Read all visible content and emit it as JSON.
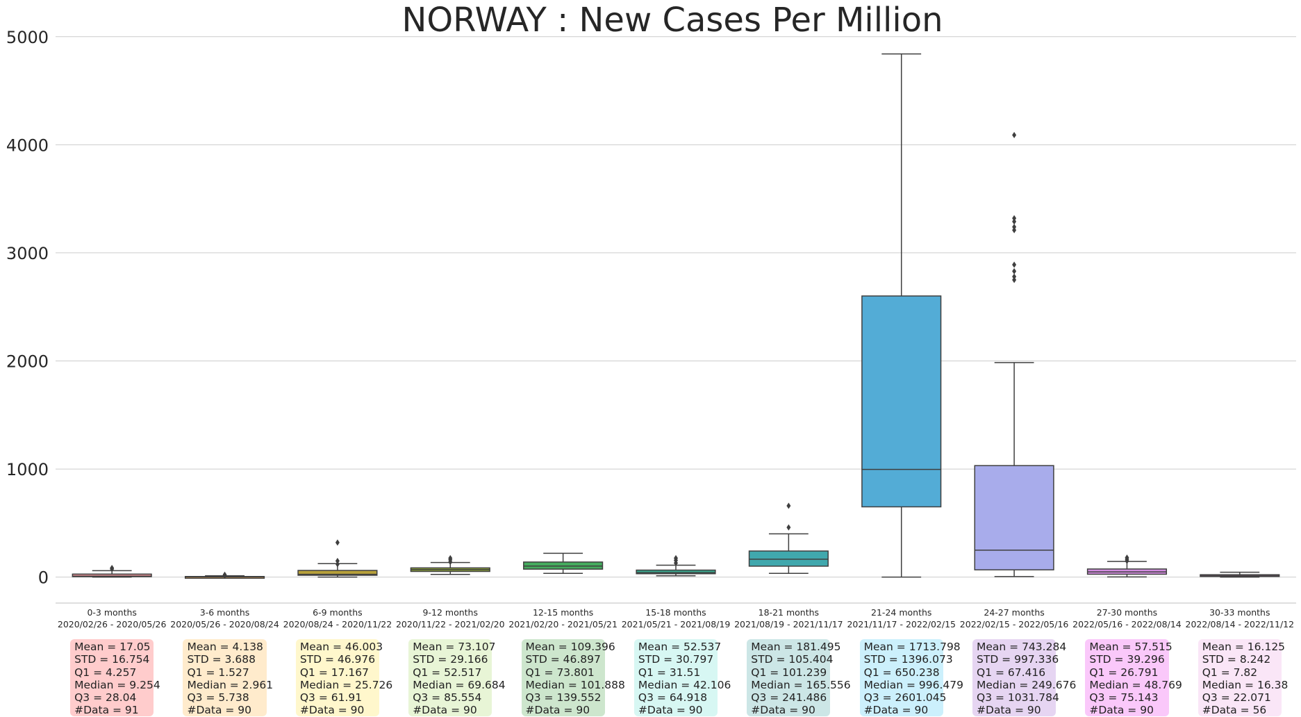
{
  "chart_data": {
    "type": "box",
    "title": "NORWAY : New Cases Per Million",
    "xlabel": "",
    "ylabel": "",
    "ylim": [
      -240,
      5050
    ],
    "yticks": [
      0,
      1000,
      2000,
      3000,
      4000,
      5000
    ],
    "grid": "horizontal",
    "categories": [
      {
        "label": "0-3 months",
        "dates": "2020/02/26 - 2020/05/26"
      },
      {
        "label": "3-6 months",
        "dates": "2020/05/26 - 2020/08/24"
      },
      {
        "label": "6-9 months",
        "dates": "2020/08/24 - 2020/11/22"
      },
      {
        "label": "9-12 months",
        "dates": "2020/11/22 - 2021/02/20"
      },
      {
        "label": "12-15 months",
        "dates": "2021/02/20 - 2021/05/21"
      },
      {
        "label": "15-18 months",
        "dates": "2021/05/21 - 2021/08/19"
      },
      {
        "label": "18-21 months",
        "dates": "2021/08/19 - 2021/11/17"
      },
      {
        "label": "21-24 months",
        "dates": "2021/11/17 - 2022/02/15"
      },
      {
        "label": "24-27 months",
        "dates": "2022/02/15 - 2022/05/16"
      },
      {
        "label": "27-30 months",
        "dates": "2022/05/16 - 2022/08/14"
      },
      {
        "label": "30-33 months",
        "dates": "2022/08/14 - 2022/11/12"
      }
    ],
    "boxes": [
      {
        "q1": 4.257,
        "median": 9.254,
        "q3": 28.04,
        "whisker_low": 0,
        "whisker_high": 60,
        "outliers": [
          75,
          85
        ],
        "color": "#e9949a"
      },
      {
        "q1": 1.527,
        "median": 2.961,
        "q3": 5.738,
        "whisker_low": 0,
        "whisker_high": 12,
        "outliers": [
          15,
          22
        ],
        "color": "#d89e56"
      },
      {
        "q1": 17.167,
        "median": 25.726,
        "q3": 61.91,
        "whisker_low": 0,
        "whisker_high": 125,
        "outliers": [
          120,
          150,
          320
        ],
        "color": "#b8a13a"
      },
      {
        "q1": 52.517,
        "median": 69.684,
        "q3": 85.554,
        "whisker_low": 25,
        "whisker_high": 135,
        "outliers": [
          140,
          160,
          175
        ],
        "color": "#8ca23a"
      },
      {
        "q1": 73.801,
        "median": 101.888,
        "q3": 139.552,
        "whisker_low": 35,
        "whisker_high": 220,
        "outliers": [],
        "color": "#45ab5e"
      },
      {
        "q1": 31.51,
        "median": 42.106,
        "q3": 64.918,
        "whisker_low": 12,
        "whisker_high": 110,
        "outliers": [
          130,
          155,
          175
        ],
        "color": "#3aa88f"
      },
      {
        "q1": 101.239,
        "median": 165.556,
        "q3": 241.486,
        "whisker_low": 35,
        "whisker_high": 400,
        "outliers": [
          460,
          660
        ],
        "color": "#40a8ad"
      },
      {
        "q1": 650.238,
        "median": 996.479,
        "q3": 2601.045,
        "whisker_low": 0,
        "whisker_high": 4840,
        "outliers": [],
        "color": "#53acd6"
      },
      {
        "q1": 67.416,
        "median": 249.676,
        "q3": 1031.784,
        "whisker_low": 5,
        "whisker_high": 1985,
        "outliers": [
          2750,
          2780,
          2830,
          2890,
          3210,
          3240,
          3290,
          3320,
          4090
        ],
        "color": "#a8aceb"
      },
      {
        "q1": 26.791,
        "median": 48.769,
        "q3": 75.143,
        "whisker_low": 2,
        "whisker_high": 145,
        "outliers": [
          150,
          165,
          180
        ],
        "color": "#d58ee2"
      },
      {
        "q1": 7.82,
        "median": 16.38,
        "q3": 22.071,
        "whisker_low": 0,
        "whisker_high": 45,
        "outliers": [],
        "color": "#e58ec5"
      }
    ],
    "stats": [
      {
        "bg": "#ffcccc",
        "lines": [
          "Mean = 17.05",
          "STD = 16.754",
          "Q1 = 4.257",
          "Median = 9.254",
          "Q3 = 28.04",
          "#Data = 91"
        ]
      },
      {
        "bg": "#ffebcc",
        "lines": [
          "Mean = 4.138",
          "STD = 3.688",
          "Q1 = 1.527",
          "Median = 2.961",
          "Q3 = 5.738",
          "#Data = 90"
        ]
      },
      {
        "bg": "#fff7cc",
        "lines": [
          "Mean = 46.003",
          "STD = 46.976",
          "Q1 = 17.167",
          "Median = 25.726",
          "Q3 = 61.91",
          "#Data = 90"
        ]
      },
      {
        "bg": "#e8f5d6",
        "lines": [
          "Mean = 73.107",
          "STD = 29.166",
          "Q1 = 52.517",
          "Median = 69.684",
          "Q3 = 85.554",
          "#Data = 90"
        ]
      },
      {
        "bg": "#cde6cd",
        "lines": [
          "Mean = 109.396",
          "STD = 46.897",
          "Q1 = 73.801",
          "Median = 101.888",
          "Q3 = 139.552",
          "#Data = 90"
        ]
      },
      {
        "bg": "#d7f7f3",
        "lines": [
          "Mean = 52.537",
          "STD = 30.797",
          "Q1 = 31.51",
          "Median = 42.106",
          "Q3 = 64.918",
          "#Data = 90"
        ]
      },
      {
        "bg": "#cce6e6",
        "lines": [
          "Mean = 181.495",
          "STD = 105.404",
          "Q1 = 101.239",
          "Median = 165.556",
          "Q3 = 241.486",
          "#Data = 90"
        ]
      },
      {
        "bg": "#ccf0fc",
        "lines": [
          "Mean = 1713.798",
          "STD = 1396.073",
          "Q1 = 650.238",
          "Median = 996.479",
          "Q3 = 2601.045",
          "#Data = 90"
        ]
      },
      {
        "bg": "#e6d5f2",
        "lines": [
          "Mean = 743.284",
          "STD = 997.336",
          "Q1 = 67.416",
          "Median = 249.676",
          "Q3 = 1031.784",
          "#Data = 90"
        ]
      },
      {
        "bg": "#fac8fa",
        "lines": [
          "Mean = 57.515",
          "STD = 39.296",
          "Q1 = 26.791",
          "Median = 48.769",
          "Q3 = 75.143",
          "#Data = 90"
        ]
      },
      {
        "bg": "#fae6f7",
        "lines": [
          "Mean = 16.125",
          "STD = 8.242",
          "Q1 = 7.82",
          "Median = 16.38",
          "Q3 = 22.071",
          "#Data = 56"
        ]
      }
    ]
  }
}
